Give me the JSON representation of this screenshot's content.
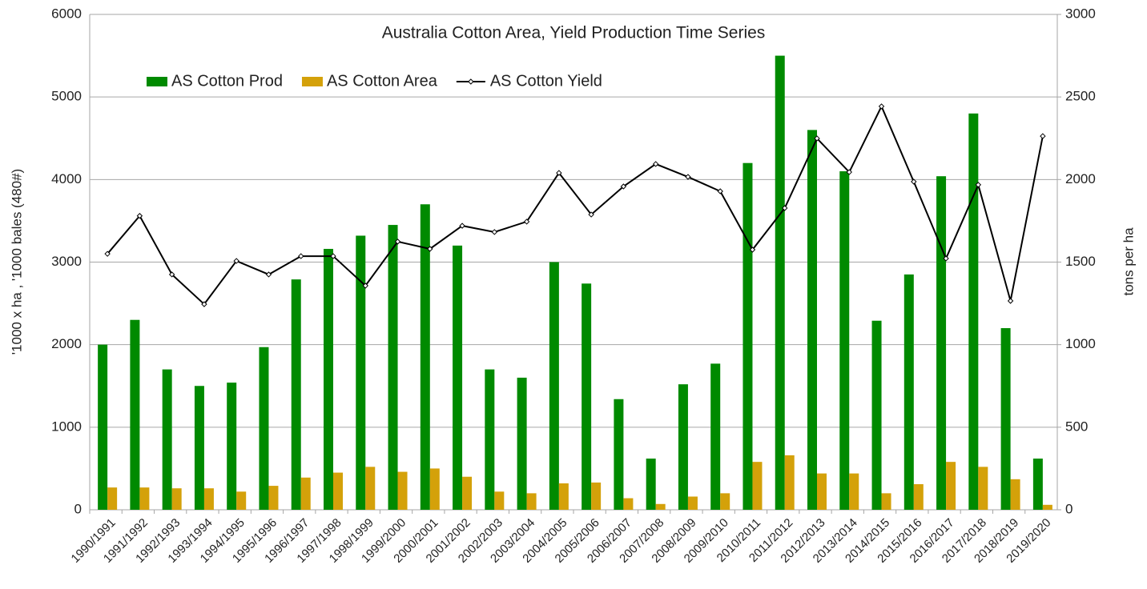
{
  "chart_data": {
    "type": "bar",
    "title": "Australia Cotton Area, Yield Production Time Series",
    "y_label": "'1000 x ha ,  '1000 bales (480#)",
    "y2_label": "tons per ha",
    "categories": [
      "1990/1991",
      "1991/1992",
      "1992/1993",
      "1993/1994",
      "1994/1995",
      "1995/1996",
      "1996/1997",
      "1997/1998",
      "1998/1999",
      "1999/2000",
      "2000/2001",
      "2001/2002",
      "2002/2003",
      "2003/2004",
      "2004/2005",
      "2005/2006",
      "2006/2007",
      "2007/2008",
      "2008/2009",
      "2009/2010",
      "2010/2011",
      "2011/2012",
      "2012/2013",
      "2013/2014",
      "2014/2015",
      "2015/2016",
      "2016/2017",
      "2017/2018",
      "2018/2019",
      "2019/2020"
    ],
    "series": [
      {
        "name": "AS Cotton Prod",
        "color": "#008a00",
        "type": "bar",
        "values": [
          2000,
          2300,
          1700,
          1500,
          1540,
          1970,
          2790,
          3160,
          3320,
          3450,
          3700,
          3200,
          1700,
          1600,
          3000,
          2740,
          1340,
          620,
          1520,
          1770,
          4200,
          5500,
          4600,
          4100,
          2290,
          2850,
          4040,
          4800,
          2200,
          620
        ]
      },
      {
        "name": "AS Cotton Area",
        "color": "#d4a10a",
        "type": "bar",
        "values": [
          270,
          270,
          260,
          260,
          220,
          290,
          390,
          450,
          520,
          460,
          500,
          400,
          220,
          200,
          320,
          330,
          140,
          70,
          160,
          200,
          580,
          660,
          440,
          440,
          200,
          310,
          580,
          520,
          370,
          60
        ]
      },
      {
        "name": "AS Cotton Yield",
        "color": "#000000",
        "type": "line",
        "axis": "y2",
        "values": [
          1550,
          1780,
          1425,
          1245,
          1507,
          1425,
          1536,
          1536,
          1357,
          1624,
          1580,
          1720,
          1682,
          1745,
          2040,
          1788,
          1958,
          2094,
          2016,
          1929,
          1575,
          1827,
          2249,
          2045,
          2443,
          1987,
          1522,
          1968,
          1265,
          2263
        ]
      }
    ],
    "ylim": [
      0,
      6000
    ],
    "yticks": [
      0,
      1000,
      2000,
      3000,
      4000,
      5000,
      6000
    ],
    "y2lim": [
      0,
      3000
    ],
    "y2ticks": [
      0,
      500,
      1000,
      1500,
      2000,
      2500,
      3000
    ],
    "grid": true,
    "legend": "top-left"
  }
}
